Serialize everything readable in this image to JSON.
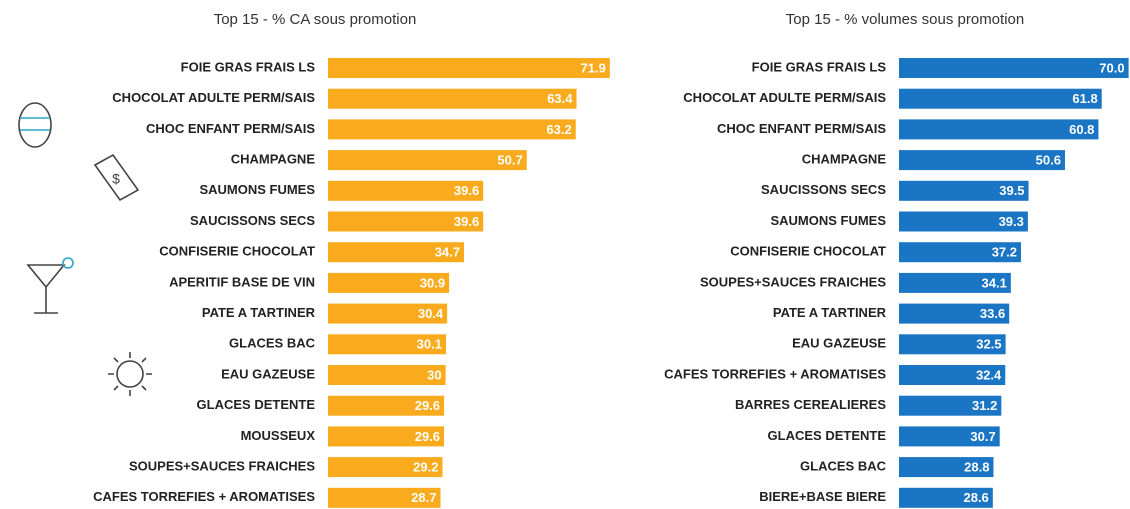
{
  "chart_data": [
    {
      "type": "bar",
      "title": "Top 15 -  % CA sous promotion",
      "color": "#f9ab1d",
      "categories": [
        "FOIE GRAS FRAIS LS",
        "CHOCOLAT ADULTE PERM/SAIS",
        "CHOC ENFANT PERM/SAIS",
        "CHAMPAGNE",
        "SAUMONS FUMES",
        "SAUCISSONS SECS",
        "CONFISERIE CHOCOLAT",
        "APERITIF BASE DE VIN",
        "PATE A TARTINER",
        "GLACES BAC",
        "EAU GAZEUSE",
        "GLACES DETENTE",
        "MOUSSEUX",
        "SOUPES+SAUCES FRAICHES",
        "CAFES TORREFIES + AROMATISES"
      ],
      "values": [
        71.9,
        63.4,
        63.2,
        50.7,
        39.6,
        39.6,
        34.7,
        30.9,
        30.4,
        30.1,
        30.0,
        29.6,
        29.6,
        29.2,
        28.7
      ]
    },
    {
      "type": "bar",
      "title": "Top 15 - % volumes sous promotion",
      "color": "#1b75c5",
      "categories": [
        "FOIE GRAS FRAIS LS",
        "CHOCOLAT ADULTE PERM/SAIS",
        "CHOC ENFANT PERM/SAIS",
        "CHAMPAGNE",
        "SAUCISSONS SECS",
        "SAUMONS FUMES",
        "CONFISERIE CHOCOLAT",
        "SOUPES+SAUCES FRAICHES",
        "PATE A TARTINER",
        "EAU GAZEUSE",
        "CAFES TORREFIES + AROMATISES",
        "BARRES CEREALIERES",
        "GLACES DETENTE",
        "GLACES BAC",
        "BIERE+BASE BIERE"
      ],
      "values": [
        70.0,
        61.8,
        60.8,
        50.6,
        39.5,
        39.3,
        37.2,
        34.1,
        33.6,
        32.5,
        32.4,
        31.2,
        30.7,
        28.8,
        28.6
      ],
      "value_labels": [
        "70.0",
        "61.8",
        "60.8",
        "50.6",
        "39.5",
        "39.3",
        "37.2",
        "34.1",
        "33.6",
        "32.5",
        "32.4",
        "31.2",
        "30.7",
        "28.8",
        "28.6"
      ]
    }
  ]
}
